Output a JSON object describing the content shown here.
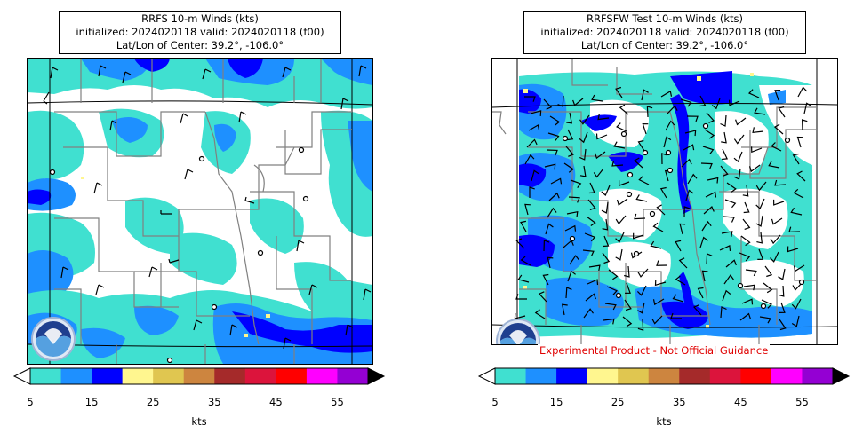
{
  "panels": [
    {
      "title_line1": "RRFS 10-m Winds (kts)",
      "title_line2": "initialized: 2024020118 valid: 2024020118 (f00)",
      "title_line3": "Lat/Lon of Center: 39.2°, -106.0°",
      "colorbar_ticks": [
        "5",
        "15",
        "25",
        "35",
        "45",
        "55"
      ],
      "colorbar_units": "kts",
      "disclaimer": ""
    },
    {
      "title_line1": "RRFSFW Test 10-m Winds (kts)",
      "title_line2": "initialized: 2024020118 valid: 2024020118 (f00)",
      "title_line3": "Lat/Lon of Center: 39.2°, -106.0°",
      "colorbar_ticks": [
        "5",
        "15",
        "25",
        "35",
        "45",
        "55"
      ],
      "colorbar_units": "kts",
      "disclaimer": "Experimental Product - Not Official Guidance"
    }
  ],
  "colorbar_colors": [
    "#40e0d0",
    "#1e90ff",
    "#0000ff",
    "#fff68f",
    "#e0c650",
    "#cd853f",
    "#a52a2a",
    "#dc143c",
    "#ff0000",
    "#ff00ff",
    "#9400d3"
  ],
  "colorbar_under_color": "#ffffff",
  "colorbar_over_color": "#000000",
  "colors": {
    "state_border": "#808080",
    "county_border": "#808080",
    "frame": "#000000"
  }
}
